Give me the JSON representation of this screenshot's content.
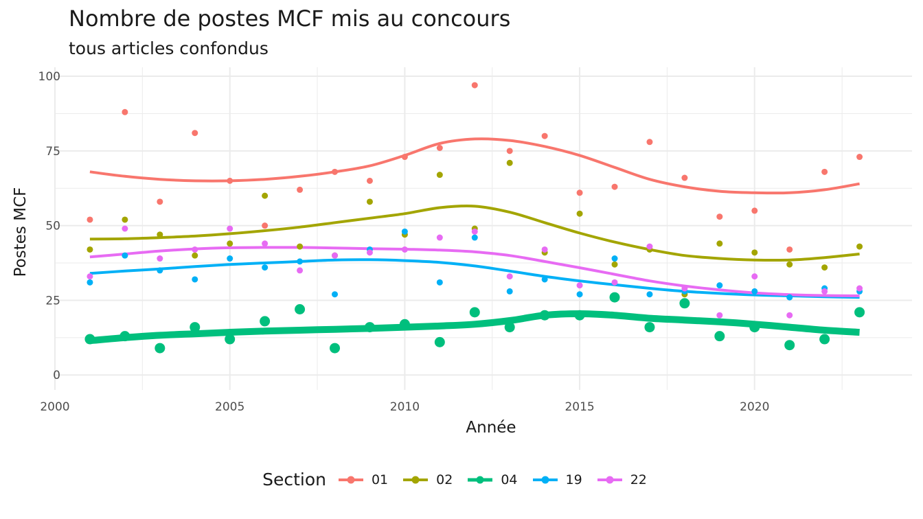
{
  "chart_data": {
    "type": "scatter",
    "title": "Nombre de postes MCF mis au concours",
    "subtitle": "tous articles confondus",
    "xlabel": "Année",
    "ylabel": "Postes MCF",
    "xlim": [
      2000,
      2024.5
    ],
    "ylim": [
      -5,
      103
    ],
    "x_ticks": [
      2000,
      2005,
      2010,
      2015,
      2020
    ],
    "y_ticks": [
      0,
      25,
      50,
      75,
      100
    ],
    "grid": true,
    "legend_title": "Section",
    "legend_position": "bottom",
    "x": [
      2001,
      2002,
      2003,
      2004,
      2005,
      2006,
      2007,
      2008,
      2009,
      2010,
      2011,
      2012,
      2013,
      2014,
      2015,
      2016,
      2017,
      2018,
      2019,
      2020,
      2021,
      2022,
      2023
    ],
    "series": [
      {
        "name": "01",
        "color": "#F8766D",
        "values": [
          52,
          88,
          58,
          81,
          65,
          50,
          62,
          68,
          65,
          73,
          76,
          97,
          75,
          80,
          61,
          63,
          78,
          66,
          53,
          55,
          42,
          68,
          73
        ],
        "smooth": [
          68,
          66.5,
          65.5,
          65,
          65,
          65.5,
          66.5,
          68,
          70,
          73.5,
          77.5,
          79,
          78.5,
          76.5,
          73.5,
          69.5,
          65.5,
          63,
          61.5,
          61,
          61,
          62,
          64
        ]
      },
      {
        "name": "02",
        "color": "#A3A500",
        "values": [
          42,
          52,
          47,
          40,
          44,
          60,
          43,
          40,
          58,
          47,
          67,
          49,
          71,
          41,
          54,
          37,
          42,
          27,
          44,
          41,
          37,
          36,
          43
        ],
        "smooth": [
          45.5,
          45.6,
          46,
          46.5,
          47.3,
          48.3,
          49.5,
          51,
          52.5,
          54,
          56,
          56.5,
          54.5,
          51,
          47.5,
          44.5,
          42,
          40,
          39,
          38.5,
          38.5,
          39.3,
          40.5
        ]
      },
      {
        "name": "04",
        "color": "#00BF7D",
        "values": [
          12,
          13,
          9,
          16,
          12,
          18,
          22,
          9,
          16,
          17,
          11,
          21,
          16,
          20,
          20,
          26,
          16,
          24,
          13,
          16,
          10,
          12,
          21
        ],
        "smooth": [
          11.5,
          12.5,
          13.3,
          13.8,
          14.3,
          14.7,
          15,
          15.3,
          15.6,
          16,
          16.4,
          17,
          18.2,
          20,
          20.5,
          20,
          19,
          18.4,
          17.8,
          17,
          16,
          15,
          14.3
        ]
      },
      {
        "name": "19",
        "color": "#00B0F6",
        "values": [
          31,
          40,
          35,
          32,
          39,
          36,
          38,
          27,
          42,
          48,
          31,
          46,
          28,
          32,
          27,
          39,
          27,
          28,
          30,
          28,
          26,
          29,
          28
        ],
        "smooth": [
          34,
          34.8,
          35.5,
          36.3,
          37,
          37.5,
          38,
          38.5,
          38.6,
          38.3,
          37.7,
          36.5,
          34.8,
          33,
          31.5,
          30.2,
          29,
          28,
          27.3,
          26.8,
          26.5,
          26.2,
          26
        ]
      },
      {
        "name": "22",
        "color": "#E76BF3",
        "values": [
          33,
          49,
          39,
          42,
          49,
          44,
          35,
          40,
          41,
          42,
          46,
          48,
          33,
          42,
          30,
          31,
          43,
          29,
          20,
          33,
          20,
          28,
          29
        ],
        "smooth": [
          39.5,
          40.5,
          41.5,
          42.2,
          42.6,
          42.7,
          42.7,
          42.5,
          42.3,
          42.1,
          41.8,
          41.2,
          40,
          38,
          35.9,
          33.7,
          31.5,
          29.8,
          28.5,
          27.5,
          26.9,
          26.6,
          26.5
        ]
      }
    ]
  }
}
